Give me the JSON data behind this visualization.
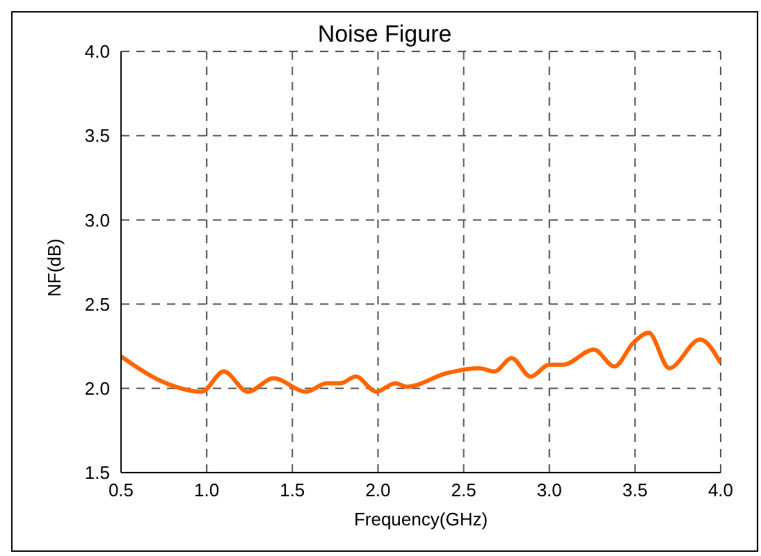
{
  "chart_data": {
    "type": "line",
    "title": "Noise Figure",
    "xlabel": "Frequency(GHz)",
    "ylabel": "NF(dB)",
    "x": [
      0.5,
      0.72,
      0.97,
      1.1,
      1.24,
      1.39,
      1.58,
      1.7,
      1.78,
      1.87,
      1.99,
      2.1,
      2.17,
      2.4,
      2.59,
      2.68,
      2.78,
      2.89,
      3.0,
      3.08,
      3.26,
      3.38,
      3.49,
      3.58,
      3.7,
      3.88,
      4.0
    ],
    "series": [
      {
        "color": "#ff6600",
        "values": [
          2.19,
          2.05,
          1.98,
          2.1,
          1.98,
          2.06,
          1.98,
          2.03,
          2.03,
          2.07,
          1.98,
          2.03,
          2.01,
          2.09,
          2.12,
          2.1,
          2.18,
          2.07,
          2.14,
          2.14,
          2.23,
          2.13,
          2.27,
          2.33,
          2.12,
          2.29,
          2.15
        ]
      }
    ],
    "xlim": [
      0.5,
      4.0
    ],
    "xticks": [
      {
        "value": 0.5,
        "label": "0.5"
      },
      {
        "value": 1,
        "label": "1.0"
      },
      {
        "value": 1.5,
        "label": "1.5"
      },
      {
        "value": 2,
        "label": "2.0"
      },
      {
        "value": 2.5,
        "label": "2.5"
      },
      {
        "value": 3,
        "label": "3.0"
      },
      {
        "value": 3.5,
        "label": "3.5"
      },
      {
        "value": 4,
        "label": "4.0"
      }
    ],
    "ylim": [
      1.5,
      4.0
    ],
    "yticks": [
      {
        "value": 1.5,
        "label": "1.5"
      },
      {
        "value": 2,
        "label": "2.0"
      },
      {
        "value": 2.5,
        "label": "2.5"
      },
      {
        "value": 3,
        "label": "3.0"
      },
      {
        "value": 3.5,
        "label": "3.5"
      },
      {
        "value": 4,
        "label": "4.0"
      }
    ],
    "grid": true,
    "legend": false,
    "marker": "none",
    "line_style": "solid"
  }
}
